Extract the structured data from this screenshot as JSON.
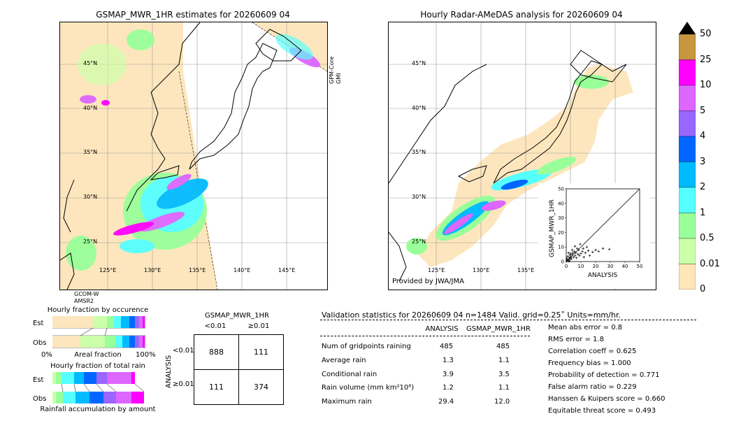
{
  "left_map": {
    "title": "GSMAP_MWR_1HR estimates for 20260609 04",
    "lat_labels": [
      "45°N",
      "40°N",
      "35°N",
      "30°N",
      "25°N"
    ],
    "lon_labels": [
      "125°E",
      "130°E",
      "135°E",
      "140°E",
      "145°E"
    ],
    "swath_label_right": [
      "GPM-Core",
      "GMI"
    ],
    "swath_label_bottom": [
      "GCOM-W",
      "AMSR2"
    ]
  },
  "right_map": {
    "title": "Hourly Radar-AMeDAS analysis for 20260609 04",
    "lat_labels": [
      "45°N",
      "40°N",
      "35°N",
      "30°N",
      "25°N"
    ],
    "lon_labels": [
      "125°E",
      "130°E",
      "135°E"
    ],
    "credit": "Provided by JWA/JMA"
  },
  "colorbar": {
    "ticks": [
      "50",
      "25",
      "10",
      "5",
      "4",
      "3",
      "2",
      "1",
      "0.5",
      "0.01",
      "0"
    ],
    "colors": [
      "#c8963e",
      "#ff00ff",
      "#dd66ff",
      "#9966ff",
      "#0066ff",
      "#00bbff",
      "#55ffff",
      "#99ff99",
      "#ccffaa",
      "#ffe6b8"
    ]
  },
  "fraction_occurrence": {
    "title": "Hourly fraction by occurence",
    "rows": [
      "Est",
      "Obs"
    ],
    "axis": [
      "0%",
      "Areal fraction",
      "100%"
    ]
  },
  "fraction_total": {
    "title": "Hourly fraction of total rain",
    "rows": [
      "Est",
      "Obs"
    ],
    "footer": "Rainfall accumulation by amount"
  },
  "contingency": {
    "title": "GSMAP_MWR_1HR",
    "col_headers": [
      "<0.01",
      "≥0.01"
    ],
    "row_axis": "ANALYSIS",
    "row_headers": [
      "<0.01",
      "≥0.01"
    ],
    "cells": [
      [
        "888",
        "111"
      ],
      [
        "111",
        "374"
      ]
    ]
  },
  "validation": {
    "header": "Validation statistics for 20260609 04  n=1484 Valid. grid=0.25˚ Units=mm/hr.",
    "col_headers": [
      "ANALYSIS",
      "GSMAP_MWR_1HR"
    ],
    "rows": [
      {
        "label": "Num of gridpoints raining",
        "a": "485",
        "b": "485"
      },
      {
        "label": "Average rain",
        "a": "1.3",
        "b": "1.1"
      },
      {
        "label": "Conditional rain",
        "a": "3.9",
        "b": "3.5"
      },
      {
        "label": "Rain volume (mm km²10⁶)",
        "a": "1.2",
        "b": "1.1"
      },
      {
        "label": "Maximum rain",
        "a": "29.4",
        "b": "12.0"
      }
    ],
    "scores": [
      "Mean abs error =    0.8",
      "RMS error =    1.8",
      "Correlation coeff =  0.625",
      "Frequency bias =  1.000",
      "Probability of detection =  0.771",
      "False alarm ratio =  0.229",
      "Hanssen & Kuipers score =  0.660",
      "Equitable threat score =  0.493"
    ]
  },
  "chart_data": {
    "type": "scatter",
    "xlabel": "ANALYSIS",
    "ylabel": "GSMAP_MWR_1HR",
    "xlim": [
      0,
      50
    ],
    "ylim": [
      0,
      50
    ],
    "ticks": [
      0,
      10,
      20,
      30,
      40,
      50
    ],
    "points": [
      [
        0.5,
        0.8
      ],
      [
        1,
        1.2
      ],
      [
        1.5,
        0.4
      ],
      [
        2,
        2.5
      ],
      [
        2.5,
        1.5
      ],
      [
        3,
        3.2
      ],
      [
        1,
        3.5
      ],
      [
        3.5,
        2
      ],
      [
        4,
        4.5
      ],
      [
        0.3,
        2
      ],
      [
        2,
        0.3
      ],
      [
        5,
        3
      ],
      [
        4.5,
        6
      ],
      [
        6,
        4
      ],
      [
        5.5,
        7
      ],
      [
        7,
        2.5
      ],
      [
        3,
        5.5
      ],
      [
        6.5,
        6
      ],
      [
        8,
        5
      ],
      [
        2.5,
        4.5
      ],
      [
        1.5,
        6
      ],
      [
        9,
        4
      ],
      [
        10,
        5.5
      ],
      [
        8.5,
        8
      ],
      [
        11,
        7
      ],
      [
        12,
        3
      ],
      [
        7.5,
        9
      ],
      [
        4,
        8
      ],
      [
        13,
        6
      ],
      [
        15,
        7.5
      ],
      [
        18,
        6.5
      ],
      [
        20,
        8
      ],
      [
        22,
        7
      ],
      [
        25,
        9
      ],
      [
        29.4,
        8.5
      ],
      [
        16,
        4
      ],
      [
        14,
        10
      ],
      [
        9.5,
        12
      ],
      [
        6,
        10.5
      ],
      [
        11.5,
        9
      ]
    ]
  }
}
